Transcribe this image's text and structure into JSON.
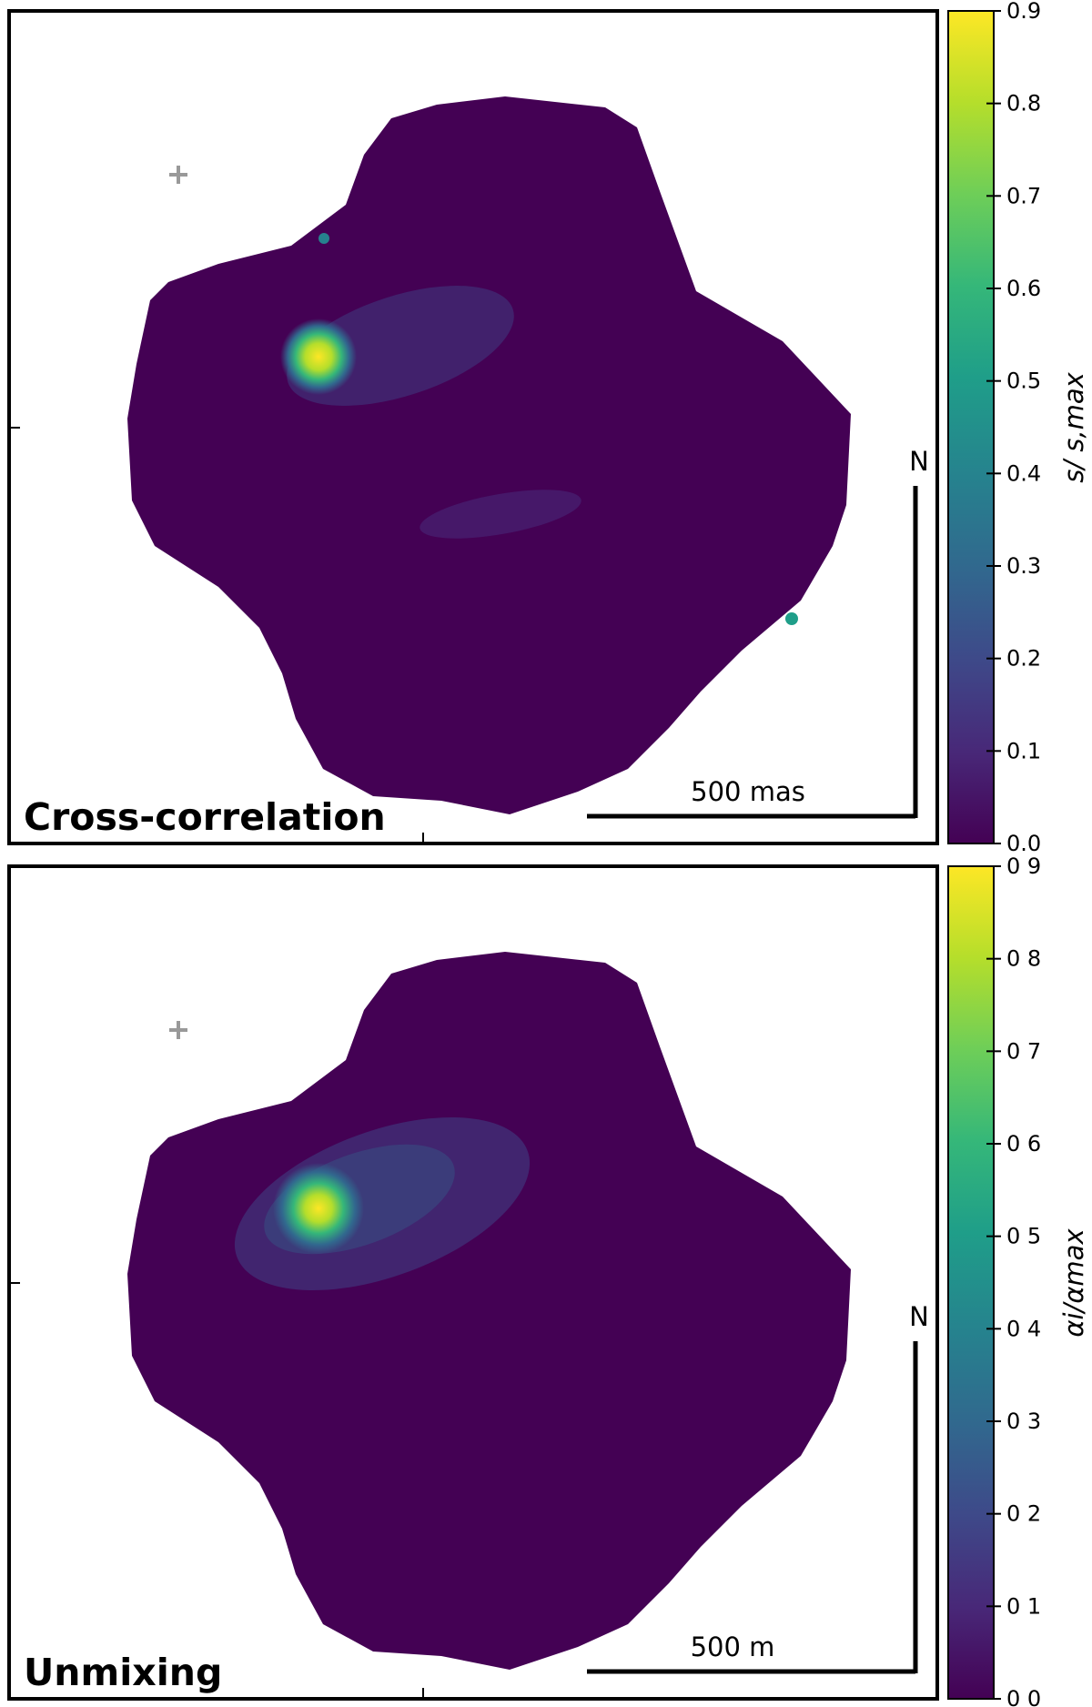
{
  "chart_data": [
    {
      "type": "heatmap",
      "title": "Cross-correlation",
      "colormap": "viridis",
      "colorbar": {
        "label": "s/ s,max",
        "range": [
          0.0,
          0.9
        ],
        "tick_labels": [
          "0.0",
          "0.1",
          "0.2",
          "0.3",
          "0.4",
          "0.5",
          "0.6",
          "0.7",
          "0.8",
          "0.9"
        ]
      },
      "peak_value": 0.9,
      "scale_bar_label": "500 mas",
      "north_label": "N",
      "marker": "+"
    },
    {
      "type": "heatmap",
      "title": "Unmixing",
      "colormap": "viridis",
      "colorbar": {
        "label": "αi/αmax",
        "range": [
          0.0,
          0.9
        ],
        "tick_labels": [
          "0 0",
          "0 1",
          "0 2",
          "0 3",
          "0 4",
          "0 5",
          "0 6",
          "0 7",
          "0 8",
          "0 9"
        ]
      },
      "peak_value": 0.9,
      "scale_bar_label": "500 m",
      "north_label": "N",
      "marker": "+"
    }
  ]
}
